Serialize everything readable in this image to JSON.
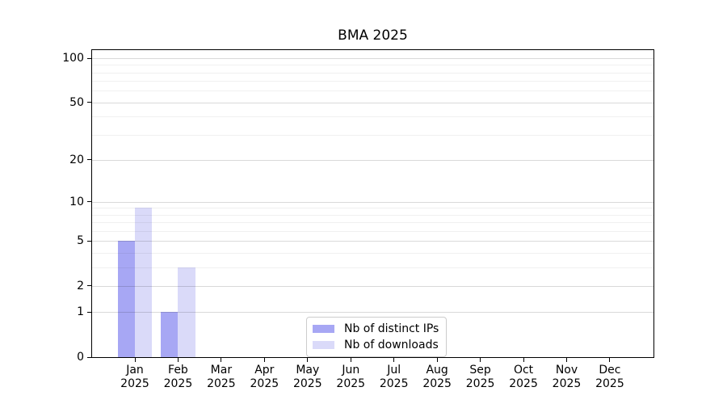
{
  "chart_data": {
    "type": "bar",
    "title": "BMA 2025",
    "categories": [
      "Jan",
      "Feb",
      "Mar",
      "Apr",
      "May",
      "Jun",
      "Jul",
      "Aug",
      "Sep",
      "Oct",
      "Nov",
      "Dec"
    ],
    "x_year_label": "2025",
    "series": [
      {
        "name": "Nb of distinct IPs",
        "color": "#a7a7f4",
        "values": [
          5,
          1,
          0,
          0,
          0,
          0,
          0,
          0,
          0,
          0,
          0,
          0
        ]
      },
      {
        "name": "Nb of downloads",
        "color": "#dadaf9",
        "values": [
          9,
          3,
          0,
          0,
          0,
          0,
          0,
          0,
          0,
          0,
          0,
          0
        ]
      }
    ],
    "y_scale": "log1p",
    "ylim": [
      0,
      113.5
    ],
    "y_major_ticks": [
      0,
      1,
      2,
      5,
      10,
      20,
      50,
      100
    ],
    "y_minor_gridlines": [
      3,
      4,
      6,
      7,
      8,
      9,
      30,
      40,
      60,
      70,
      80,
      90
    ],
    "grid": "horizontal",
    "legend": {
      "location": "lower-center-inside"
    },
    "palette": {
      "frame": "#000000",
      "major_grid": "rgba(0,0,0,0.15)",
      "minor_grid": "rgba(0,0,0,0.06)",
      "legend_border": "#cccccc"
    }
  }
}
